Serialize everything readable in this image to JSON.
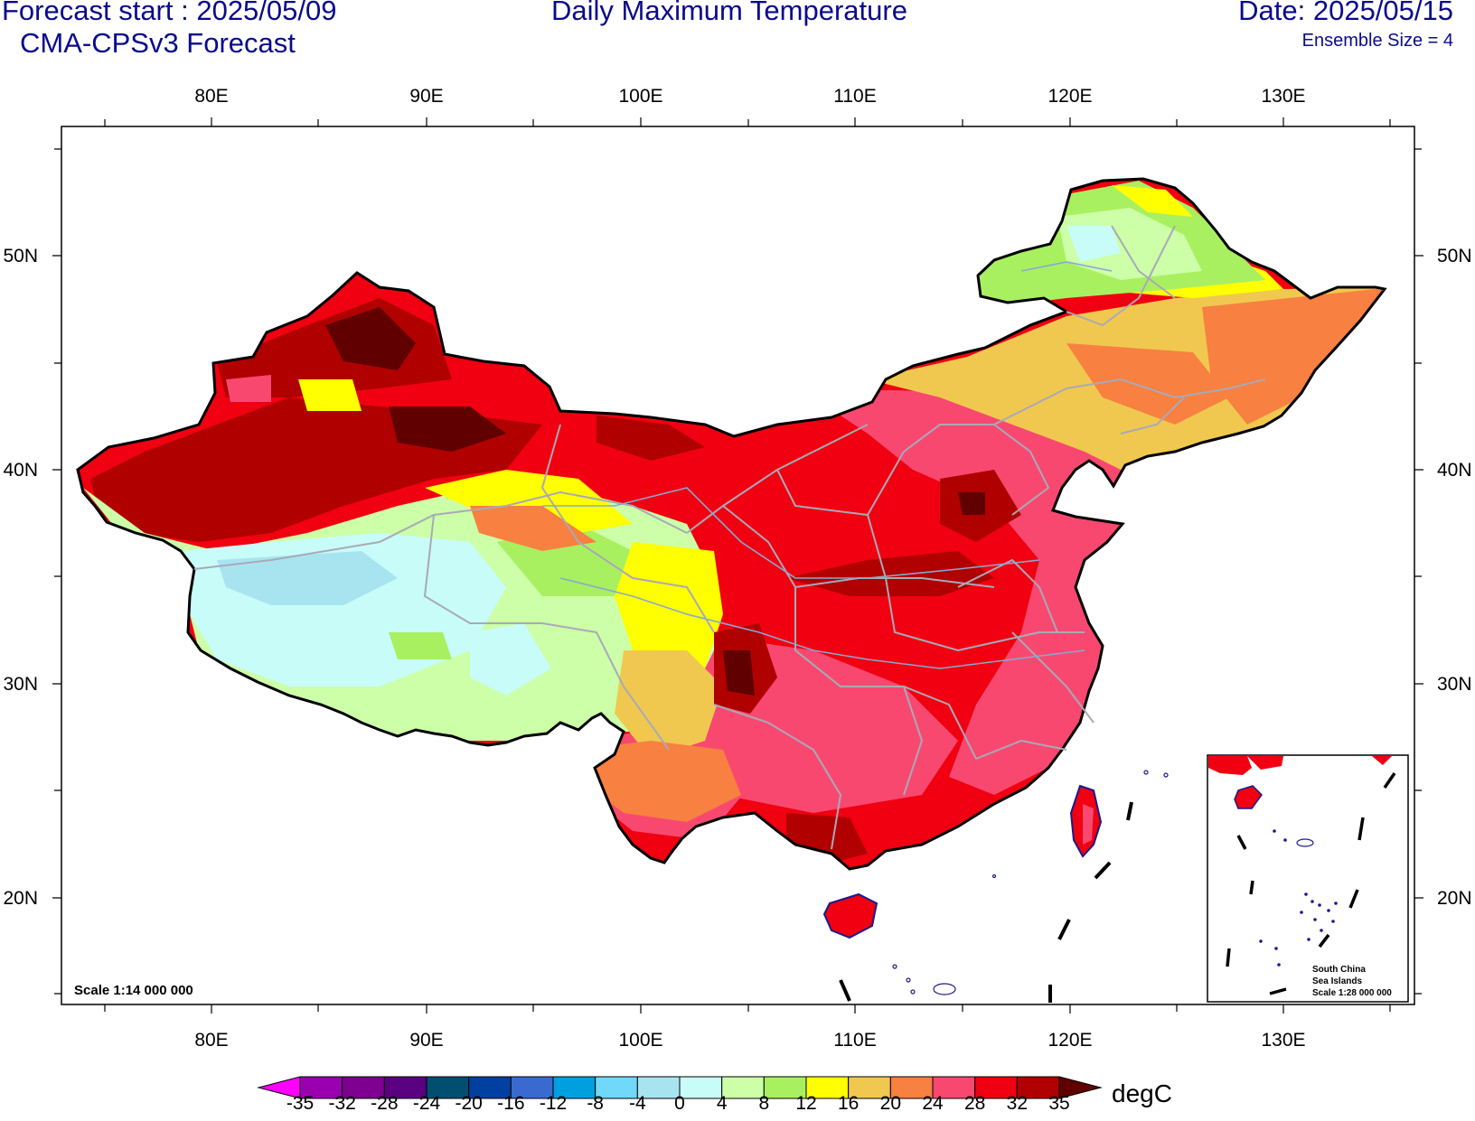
{
  "header": {
    "forecast_start": "Forecast start : 2025/05/09",
    "model": "CMA-CPSv3 Forecast",
    "title": "Daily Maximum Temperature",
    "date": "Date: 2025/05/15",
    "ensemble": "Ensemble Size = 4"
  },
  "axes": {
    "lon_labels": [
      "80E",
      "90E",
      "100E",
      "110E",
      "120E",
      "130E"
    ],
    "lat_labels": [
      "50N",
      "40N",
      "30N",
      "20N"
    ]
  },
  "scale_note": "Scale 1:14 000 000",
  "inset": {
    "line1": "South China",
    "line2": "Sea Islands",
    "line3": "Scale 1:28 000 000"
  },
  "colorbar": {
    "units": "degC",
    "labels": [
      "-35",
      "-32",
      "-28",
      "-24",
      "-20",
      "-16",
      "-12",
      "-8",
      "-4",
      "0",
      "4",
      "8",
      "12",
      "16",
      "20",
      "24",
      "28",
      "32",
      "35"
    ],
    "colors": [
      "#ff00ff",
      "#9a00b0",
      "#7d0090",
      "#5a0080",
      "#004f70",
      "#0040a0",
      "#3a6ad0",
      "#00a0e0",
      "#70d8f8",
      "#a8e4f0",
      "#c8fcf8",
      "#ccffa8",
      "#a8f060",
      "#ffff00",
      "#f0c850",
      "#f88040",
      "#f84870",
      "#f00010",
      "#b00000",
      "#600000"
    ]
  }
}
